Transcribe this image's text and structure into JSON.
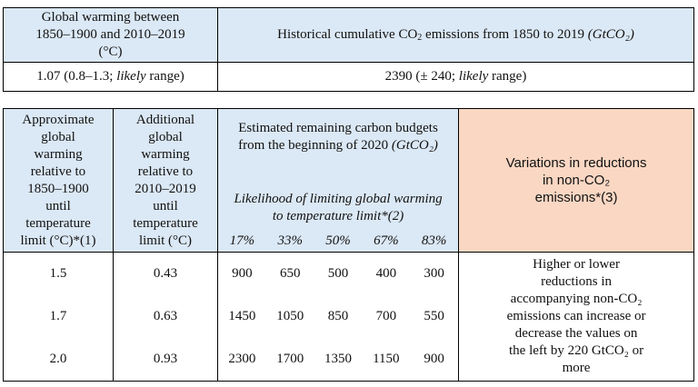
{
  "top_table": {
    "header_left": [
      "Global warming between",
      "1850–1900 and 2010–2019",
      "(°C)"
    ],
    "header_right_prefix": "Historical cumulative CO",
    "header_right_sub": "2",
    "header_right_suffix": " emissions from 1850 to 2019 ",
    "header_right_unit": "(GtCO₂)",
    "value_left_main": "1.07 (0.8–1.3; ",
    "value_left_italic": "likely",
    "value_left_end": " range)",
    "value_right_main": "2390 (± 240; ",
    "value_right_italic": "likely",
    "value_right_end": " range)"
  },
  "bottom_table": {
    "col1_header": [
      "Approximate",
      "global",
      "warming",
      "relative to",
      "1850–1900",
      "until",
      "temperature",
      "limit (°C)*(1)"
    ],
    "col2_header": [
      "Additional",
      "global",
      "warming",
      "relative to",
      "2010–2019",
      "until",
      "temperature",
      "limit (°C)"
    ],
    "budget_title_line1": "Estimated remaining carbon budgets",
    "budget_title_line2": "from the beginning of 2020 ",
    "budget_title_unit": "(GtCO₂)",
    "likelihood_line1": "Likelihood of limiting global warming",
    "likelihood_line2": "to temperature limit*(2)",
    "percentiles": [
      "17%",
      "33%",
      "50%",
      "67%",
      "83%"
    ],
    "variations_header": [
      "Variations in reductions",
      "in non-CO₂",
      "emissions*(3)"
    ],
    "rows": [
      {
        "limit": "1.5",
        "additional": "0.43",
        "budgets": [
          "900",
          "650",
          "500",
          "400",
          "300"
        ]
      },
      {
        "limit": "1.7",
        "additional": "0.63",
        "budgets": [
          "1450",
          "1050",
          "850",
          "700",
          "550"
        ]
      },
      {
        "limit": "2.0",
        "additional": "0.93",
        "budgets": [
          "2300",
          "1700",
          "1350",
          "1150",
          "900"
        ]
      }
    ],
    "variations_text": [
      "Higher or lower",
      "reductions in",
      "accompanying non-CO₂",
      "emissions can increase or",
      "decrease the values on",
      "the left by 220 GtCO₂ or",
      "more"
    ]
  },
  "colors": {
    "header_blue": "#dbe8f5",
    "header_peach": "#fad7c3"
  }
}
